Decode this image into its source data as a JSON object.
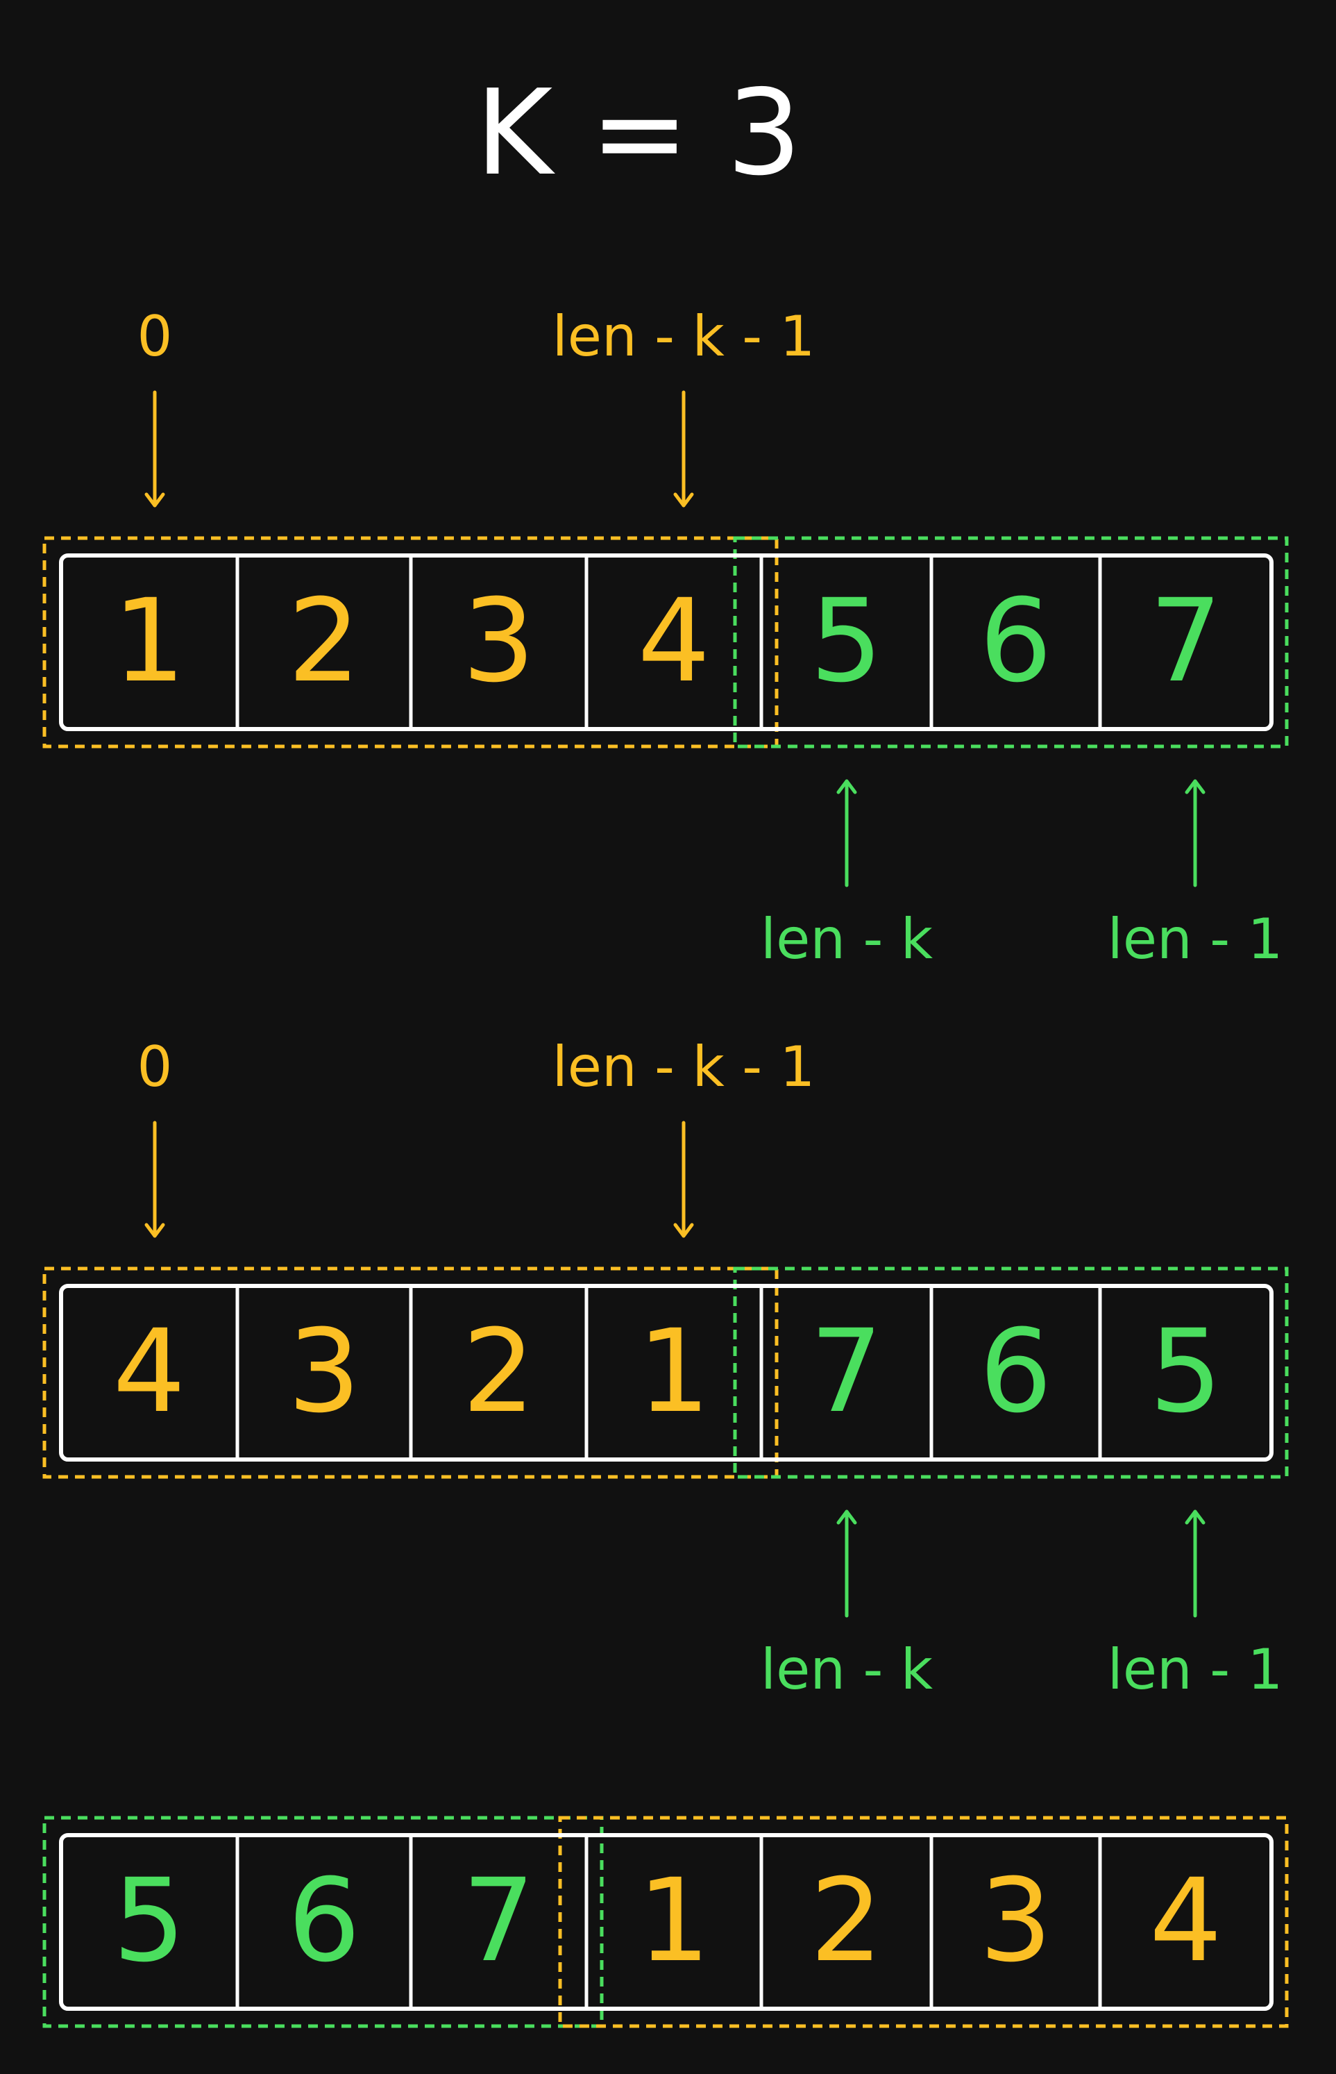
{
  "title": "K = 3",
  "colors": {
    "background": "#111111",
    "white": "#ffffff",
    "orange": "#fbbf24",
    "green": "#4ade5e"
  },
  "rows": [
    {
      "cells": [
        "1",
        "2",
        "3",
        "4",
        "5",
        "6",
        "7"
      ],
      "cell_colors": [
        "orange",
        "orange",
        "orange",
        "orange",
        "green",
        "green",
        "green"
      ],
      "top_labels": [
        {
          "text": "0",
          "cell": 0
        },
        {
          "text": "len  -  k  -  1",
          "cell": 3
        }
      ],
      "bottom_labels": [
        {
          "text": "len  -  k",
          "cell": 4
        },
        {
          "text": "len  -  1",
          "cell": 6
        }
      ]
    },
    {
      "cells": [
        "4",
        "3",
        "2",
        "1",
        "7",
        "6",
        "5"
      ],
      "cell_colors": [
        "orange",
        "orange",
        "orange",
        "orange",
        "green",
        "green",
        "green"
      ],
      "top_labels": [
        {
          "text": "0",
          "cell": 0
        },
        {
          "text": "len  -  k  -  1",
          "cell": 3
        }
      ],
      "bottom_labels": [
        {
          "text": "len  -  k",
          "cell": 4
        },
        {
          "text": "len  -  1",
          "cell": 6
        }
      ]
    },
    {
      "cells": [
        "5",
        "6",
        "7",
        "1",
        "2",
        "3",
        "4"
      ],
      "cell_colors": [
        "green",
        "green",
        "green",
        "orange",
        "orange",
        "orange",
        "orange"
      ],
      "top_labels": [],
      "bottom_labels": []
    }
  ]
}
